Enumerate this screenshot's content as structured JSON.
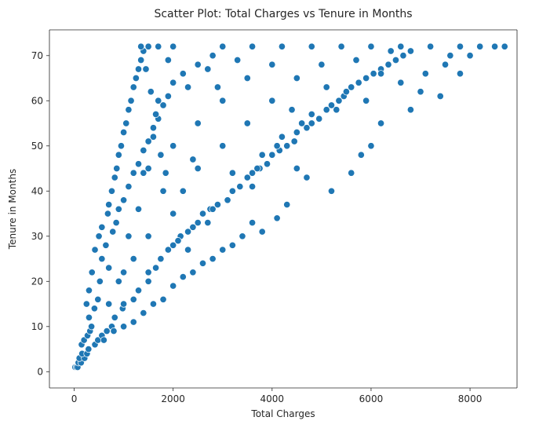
{
  "chart_data": {
    "type": "scatter",
    "title": "Scatter Plot: Total Charges vs Tenure in Months",
    "xlabel": "Total Charges",
    "ylabel": "Tenure in Months",
    "xlim": [
      -500,
      8950
    ],
    "ylim": [
      -3.6,
      75.7
    ],
    "xticks": [
      0,
      2000,
      4000,
      6000,
      8000
    ],
    "yticks": [
      0,
      10,
      20,
      30,
      40,
      50,
      60,
      70
    ],
    "grid": false,
    "legend": "none",
    "marker_color": "#1f77b4",
    "marker_edge_color": "#ffffff",
    "series": [
      {
        "points": [
          [
            19,
            1
          ],
          [
            45,
            1
          ],
          [
            70,
            1
          ],
          [
            85,
            2
          ],
          [
            140,
            2
          ],
          [
            105,
            3
          ],
          [
            210,
            3
          ],
          [
            160,
            4
          ],
          [
            260,
            4
          ],
          [
            290,
            5
          ],
          [
            150,
            6
          ],
          [
            420,
            6
          ],
          [
            200,
            7
          ],
          [
            480,
            7
          ],
          [
            270,
            8
          ],
          [
            560,
            8
          ],
          [
            320,
            9
          ],
          [
            660,
            9
          ],
          [
            350,
            10
          ],
          [
            760,
            10
          ],
          [
            300,
            12
          ],
          [
            820,
            12
          ],
          [
            410,
            14
          ],
          [
            980,
            14
          ],
          [
            250,
            15
          ],
          [
            1000,
            15
          ],
          [
            480,
            16
          ],
          [
            1200,
            16
          ],
          [
            300,
            18
          ],
          [
            1300,
            18
          ],
          [
            520,
            20
          ],
          [
            1500,
            20
          ],
          [
            360,
            22
          ],
          [
            1500,
            22
          ],
          [
            700,
            23
          ],
          [
            1650,
            23
          ],
          [
            560,
            25
          ],
          [
            1750,
            25
          ],
          [
            420,
            27
          ],
          [
            1900,
            27
          ],
          [
            640,
            28
          ],
          [
            2000,
            28
          ],
          [
            500,
            30
          ],
          [
            2150,
            30
          ],
          [
            780,
            31
          ],
          [
            2300,
            31
          ],
          [
            560,
            32
          ],
          [
            2400,
            32
          ],
          [
            850,
            33
          ],
          [
            2500,
            33
          ],
          [
            680,
            35
          ],
          [
            2600,
            35
          ],
          [
            900,
            36
          ],
          [
            2750,
            36
          ],
          [
            700,
            37
          ],
          [
            2900,
            37
          ],
          [
            1000,
            38
          ],
          [
            3100,
            38
          ],
          [
            760,
            40
          ],
          [
            3200,
            40
          ],
          [
            1100,
            41
          ],
          [
            3350,
            41
          ],
          [
            820,
            43
          ],
          [
            3500,
            43
          ],
          [
            1200,
            44
          ],
          [
            3600,
            44
          ],
          [
            860,
            45
          ],
          [
            3750,
            45
          ],
          [
            1300,
            46
          ],
          [
            3900,
            46
          ],
          [
            900,
            48
          ],
          [
            4000,
            48
          ],
          [
            1400,
            49
          ],
          [
            4150,
            49
          ],
          [
            950,
            50
          ],
          [
            4300,
            50
          ],
          [
            1500,
            51
          ],
          [
            4450,
            51
          ],
          [
            1000,
            53
          ],
          [
            4500,
            53
          ],
          [
            1600,
            54
          ],
          [
            4700,
            54
          ],
          [
            1050,
            55
          ],
          [
            4800,
            55
          ],
          [
            1700,
            56
          ],
          [
            4950,
            56
          ],
          [
            1100,
            58
          ],
          [
            5100,
            58
          ],
          [
            1800,
            59
          ],
          [
            5200,
            59
          ],
          [
            1150,
            60
          ],
          [
            5350,
            60
          ],
          [
            1900,
            61
          ],
          [
            5450,
            61
          ],
          [
            1200,
            63
          ],
          [
            5600,
            63
          ],
          [
            2000,
            64
          ],
          [
            5750,
            64
          ],
          [
            1250,
            65
          ],
          [
            5900,
            65
          ],
          [
            2200,
            66
          ],
          [
            6050,
            66
          ],
          [
            1300,
            67
          ],
          [
            6200,
            67
          ],
          [
            2500,
            68
          ],
          [
            6350,
            68
          ],
          [
            1350,
            69
          ],
          [
            6500,
            69
          ],
          [
            2800,
            70
          ],
          [
            6650,
            70
          ],
          [
            1400,
            71
          ],
          [
            6800,
            71
          ],
          [
            1350,
            72
          ],
          [
            1500,
            72
          ],
          [
            1700,
            72
          ],
          [
            2000,
            72
          ],
          [
            3000,
            72
          ],
          [
            3600,
            72
          ],
          [
            4200,
            72
          ],
          [
            4800,
            72
          ],
          [
            5400,
            72
          ],
          [
            6000,
            72
          ],
          [
            6600,
            72
          ],
          [
            7200,
            72
          ],
          [
            7800,
            72
          ],
          [
            8200,
            72
          ],
          [
            8500,
            72
          ],
          [
            8700,
            72
          ],
          [
            7400,
            61
          ],
          [
            7800,
            66
          ],
          [
            6000,
            50
          ],
          [
            6200,
            55
          ],
          [
            5600,
            44
          ],
          [
            5800,
            48
          ],
          [
            5200,
            40
          ],
          [
            4700,
            43
          ],
          [
            4500,
            45
          ],
          [
            4300,
            37
          ],
          [
            4100,
            34
          ],
          [
            3800,
            31
          ],
          [
            3600,
            33
          ],
          [
            3400,
            30
          ],
          [
            3200,
            28
          ],
          [
            3000,
            27
          ],
          [
            2800,
            25
          ],
          [
            2600,
            24
          ],
          [
            2400,
            22
          ],
          [
            2200,
            21
          ],
          [
            2000,
            19
          ],
          [
            1800,
            16
          ],
          [
            1600,
            15
          ],
          [
            1400,
            13
          ],
          [
            1200,
            11
          ],
          [
            1000,
            10
          ],
          [
            800,
            9
          ],
          [
            600,
            7
          ],
          [
            7000,
            62
          ],
          [
            7500,
            68
          ],
          [
            8000,
            70
          ],
          [
            6800,
            58
          ],
          [
            1500,
            30
          ],
          [
            1500,
            45
          ],
          [
            2000,
            35
          ],
          [
            2500,
            45
          ],
          [
            3000,
            50
          ],
          [
            3500,
            55
          ],
          [
            4000,
            60
          ],
          [
            4500,
            65
          ],
          [
            5000,
            68
          ],
          [
            2500,
            55
          ],
          [
            3000,
            60
          ],
          [
            3500,
            65
          ],
          [
            4000,
            68
          ],
          [
            2000,
            50
          ],
          [
            1800,
            40
          ],
          [
            1200,
            25
          ],
          [
            900,
            20
          ],
          [
            700,
            15
          ],
          [
            2200,
            40
          ],
          [
            2800,
            36
          ],
          [
            3200,
            44
          ],
          [
            3800,
            48
          ],
          [
            4200,
            52
          ],
          [
            4800,
            57
          ],
          [
            5500,
            62
          ],
          [
            6200,
            66
          ],
          [
            1700,
            60
          ],
          [
            1600,
            52
          ],
          [
            1400,
            44
          ],
          [
            1300,
            36
          ],
          [
            1100,
            30
          ],
          [
            1000,
            22
          ],
          [
            2300,
            63
          ],
          [
            2700,
            67
          ],
          [
            2900,
            63
          ],
          [
            3300,
            69
          ],
          [
            1900,
            69
          ],
          [
            2400,
            47
          ],
          [
            3600,
            41
          ],
          [
            4400,
            58
          ],
          [
            5100,
            63
          ],
          [
            5700,
            69
          ],
          [
            6400,
            71
          ],
          [
            1450,
            67
          ],
          [
            1550,
            62
          ],
          [
            1650,
            57
          ],
          [
            1750,
            48
          ],
          [
            1850,
            44
          ],
          [
            2100,
            29
          ],
          [
            2300,
            27
          ],
          [
            2700,
            33
          ],
          [
            3100,
            38
          ],
          [
            3700,
            45
          ],
          [
            4100,
            50
          ],
          [
            4600,
            55
          ],
          [
            5300,
            58
          ],
          [
            5900,
            60
          ],
          [
            6600,
            64
          ],
          [
            7100,
            66
          ],
          [
            7600,
            70
          ]
        ]
      }
    ]
  }
}
